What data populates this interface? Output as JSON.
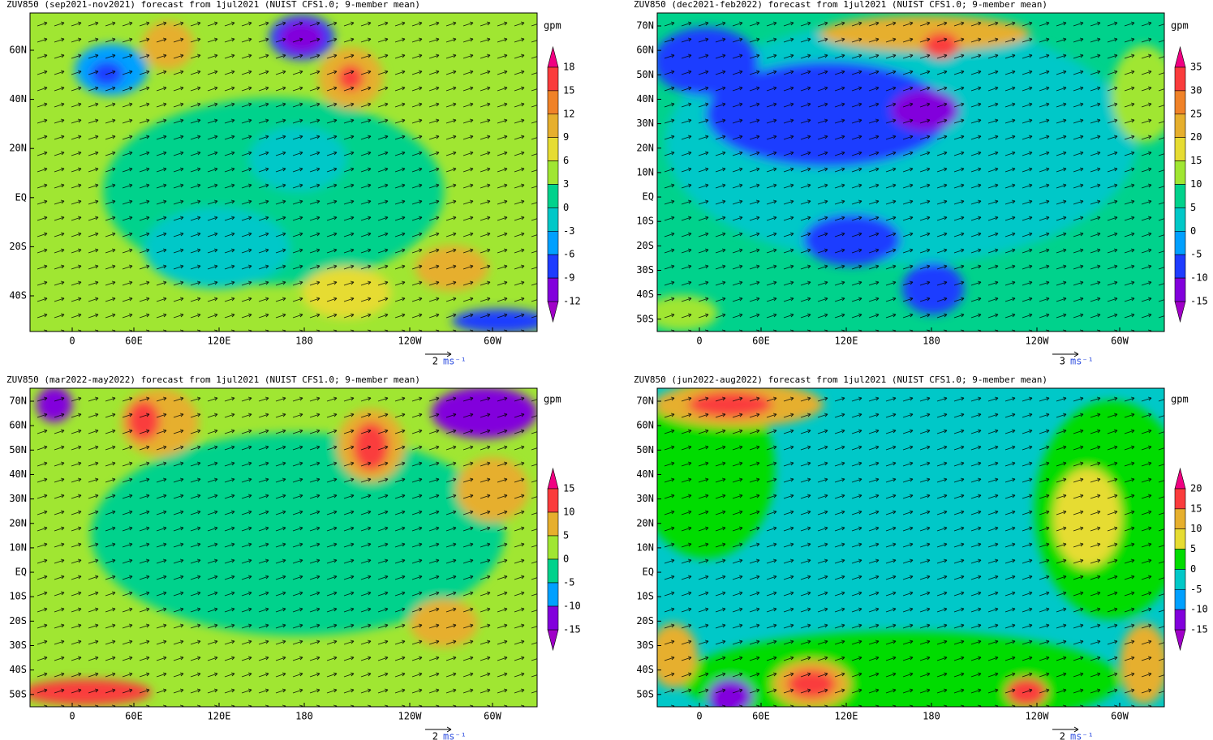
{
  "panels": [
    {
      "title": "ZUV850 (sep2021-nov2021) forecast from 1jul2021 (NUIST CFS1.0; 9-member mean)",
      "unit": "gpm",
      "lat_labels": [
        "60N",
        "40N",
        "20N",
        "EQ",
        "20S",
        "40S"
      ],
      "lon_labels": [
        "0",
        "60E",
        "120E",
        "180",
        "120W",
        "60W"
      ],
      "ref_vector": "2",
      "ref_unit": "ms⁻¹",
      "colorbar": {
        "labels": [
          18,
          15,
          12,
          9,
          6,
          3,
          0,
          -3,
          -6,
          -9,
          -12
        ],
        "colors": [
          "#a000c8",
          "#8200dc",
          "#1e3cff",
          "#00a0ff",
          "#00c8c8",
          "#00d28c",
          "#a0e632",
          "#e6dc32",
          "#e6af2d",
          "#f08228",
          "#fa3c3c",
          "#f00082"
        ]
      }
    },
    {
      "title": "ZUV850 (dec2021-feb2022) forecast from 1jul2021 (NUIST CFS1.0; 9-member mean)",
      "unit": "gpm",
      "lat_labels": [
        "70N",
        "60N",
        "50N",
        "40N",
        "30N",
        "20N",
        "10N",
        "EQ",
        "10S",
        "20S",
        "30S",
        "40S",
        "50S"
      ],
      "lon_labels": [
        "0",
        "60E",
        "120E",
        "180",
        "120W",
        "60W"
      ],
      "ref_vector": "3",
      "ref_unit": "ms⁻¹",
      "colorbar": {
        "labels": [
          35,
          30,
          25,
          20,
          15,
          10,
          5,
          0,
          -5,
          -10,
          -15
        ],
        "colors": [
          "#a000c8",
          "#8200dc",
          "#1e3cff",
          "#00a0ff",
          "#00c8c8",
          "#00d28c",
          "#a0e632",
          "#e6dc32",
          "#e6af2d",
          "#f08228",
          "#fa3c3c",
          "#f00082"
        ]
      }
    },
    {
      "title": "ZUV850 (mar2022-may2022) forecast from 1jul2021 (NUIST CFS1.0; 9-member mean)",
      "unit": "gpm",
      "lat_labels": [
        "70N",
        "60N",
        "50N",
        "40N",
        "30N",
        "20N",
        "10N",
        "EQ",
        "10S",
        "20S",
        "30S",
        "40S",
        "50S"
      ],
      "lon_labels": [
        "0",
        "60E",
        "120E",
        "180",
        "120W",
        "60W"
      ],
      "ref_vector": "2",
      "ref_unit": "ms⁻¹",
      "colorbar": {
        "labels": [
          15,
          10,
          5,
          0,
          -5,
          -10,
          -15
        ],
        "colors": [
          "#a000c8",
          "#8200dc",
          "#00a0ff",
          "#00d28c",
          "#a0e632",
          "#e6af2d",
          "#fa3c3c",
          "#f00082"
        ]
      }
    },
    {
      "title": "ZUV850 (jun2022-aug2022) forecast from 1jul2021 (NUIST CFS1.0; 9-member mean)",
      "unit": "gpm",
      "lat_labels": [
        "70N",
        "60N",
        "50N",
        "40N",
        "30N",
        "20N",
        "10N",
        "EQ",
        "10S",
        "20S",
        "30S",
        "40S",
        "50S"
      ],
      "lon_labels": [
        "0",
        "60E",
        "120E",
        "180",
        "120W",
        "60W"
      ],
      "ref_vector": "2",
      "ref_unit": "ms⁻¹",
      "colorbar": {
        "labels": [
          20,
          15,
          10,
          5,
          0,
          -5,
          -10,
          -15
        ],
        "colors": [
          "#a000c8",
          "#8200dc",
          "#00a0ff",
          "#00c8c8",
          "#00dc00",
          "#e6dc32",
          "#e6af2d",
          "#fa3c3c",
          "#f00082"
        ]
      }
    }
  ]
}
